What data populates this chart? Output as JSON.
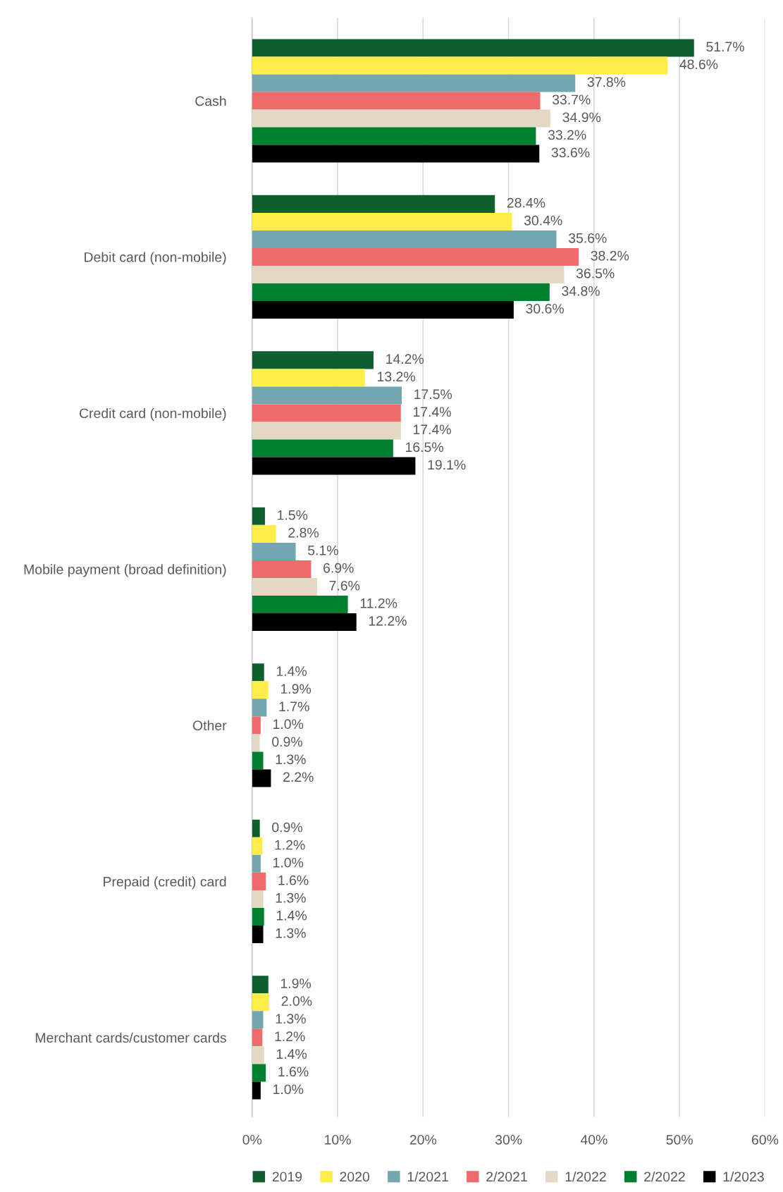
{
  "chart_data": {
    "type": "bar",
    "orientation": "horizontal",
    "categories": [
      "Cash",
      "Debit card (non-mobile)",
      "Credit card (non-mobile)",
      "Mobile payment (broad definition)",
      "Other",
      "Prepaid (credit) card",
      "Merchant cards/customer cards"
    ],
    "series": [
      {
        "name": "2019",
        "color": "#0e5e2e",
        "values": [
          51.7,
          28.4,
          14.2,
          1.5,
          1.4,
          0.9,
          1.9
        ],
        "value_labels": [
          "51.7%",
          "28.4%",
          "14.2%",
          "1.5%",
          "1.4%",
          "0.9%",
          "1.9%"
        ]
      },
      {
        "name": "2020",
        "color": "#ffee4a",
        "values": [
          48.6,
          30.4,
          13.2,
          2.8,
          1.9,
          1.2,
          2.0
        ],
        "value_labels": [
          "48.6%",
          "30.4%",
          "13.2%",
          "2.8%",
          "1.9%",
          "1.2%",
          "2.0%"
        ]
      },
      {
        "name": "1/2021",
        "color": "#72a7b0",
        "values": [
          37.8,
          35.6,
          17.5,
          5.1,
          1.7,
          1.0,
          1.3
        ],
        "value_labels": [
          "37.8%",
          "35.6%",
          "17.5%",
          "5.1%",
          "1.7%",
          "1.0%",
          "1.3%"
        ]
      },
      {
        "name": "2/2021",
        "color": "#ee6b6b",
        "values": [
          33.7,
          38.2,
          17.4,
          6.9,
          1.0,
          1.6,
          1.2
        ],
        "value_labels": [
          "33.7%",
          "38.2%",
          "17.4%",
          "6.9%",
          "1.0%",
          "1.6%",
          "1.2%"
        ]
      },
      {
        "name": "1/2022",
        "color": "#e2d8c4",
        "values": [
          34.9,
          36.5,
          17.4,
          7.6,
          0.9,
          1.3,
          1.4
        ],
        "value_labels": [
          "34.9%",
          "36.5%",
          "17.4%",
          "7.6%",
          "0.9%",
          "1.3%",
          "1.4%"
        ]
      },
      {
        "name": "2/2022",
        "color": "#00802f",
        "values": [
          33.2,
          34.8,
          16.5,
          11.2,
          1.3,
          1.4,
          1.6
        ],
        "value_labels": [
          "33.2%",
          "34.8%",
          "16.5%",
          "11.2%",
          "1.3%",
          "1.4%",
          "1.6%"
        ]
      },
      {
        "name": "1/2023",
        "color": "#000000",
        "values": [
          33.6,
          30.6,
          19.1,
          12.2,
          2.2,
          1.3,
          1.0
        ],
        "value_labels": [
          "33.6%",
          "30.6%",
          "19.1%",
          "12.2%",
          "2.2%",
          "1.3%",
          "1.0%"
        ]
      }
    ],
    "xlim": [
      0,
      60
    ],
    "xticks": [
      {
        "value": 0,
        "label": "0%"
      },
      {
        "value": 10,
        "label": "10%"
      },
      {
        "value": 20,
        "label": "20%"
      },
      {
        "value": 30,
        "label": "30%"
      },
      {
        "value": 40,
        "label": "40%"
      },
      {
        "value": 50,
        "label": "50%"
      },
      {
        "value": 60,
        "label": "60%"
      }
    ],
    "grid": "x",
    "legend": "bottom"
  }
}
